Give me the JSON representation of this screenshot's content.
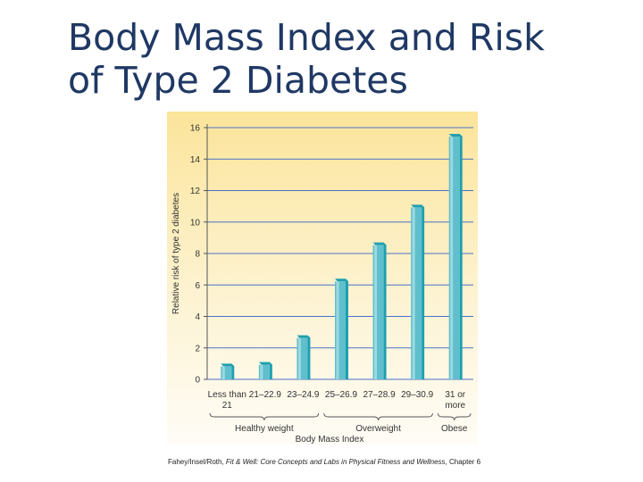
{
  "slide": {
    "title_line1": "Body Mass Index and Risk",
    "title_line2": "of Type 2 Diabetes",
    "citation": {
      "authors": "Fahey/Insel/Roth, ",
      "book": "Fit & Well: Core Concepts and Labs in Physical Fitness and Wellness",
      "chapter": ", Chapter 6"
    }
  },
  "colors": {
    "title": "#1f3864",
    "bar_front": "#5fbfcc",
    "bar_light": "#a7dde4",
    "bar_top": "#1f9fb0",
    "bg_top": "#fbe49a",
    "bg_bottom": "#fefcf6",
    "gridline": "#4a72c4"
  },
  "chart_data": {
    "type": "bar",
    "categories": [
      "Less than 21",
      "21–22.9",
      "23–24.9",
      "25–26.9",
      "27–28.9",
      "29–30.9",
      "31 or more"
    ],
    "values": [
      1.0,
      1.1,
      2.8,
      6.4,
      8.7,
      11.1,
      15.6
    ],
    "category_lines": [
      [
        "Less than",
        "21"
      ],
      [
        "21–22.9"
      ],
      [
        "23–24.9"
      ],
      [
        "25–26.9"
      ],
      [
        "27–28.9"
      ],
      [
        "29–30.9"
      ],
      [
        "31 or",
        "more"
      ]
    ],
    "groups": [
      {
        "label": "Healthy weight",
        "from": 0,
        "to": 2
      },
      {
        "label": "Overweight",
        "from": 3,
        "to": 5
      },
      {
        "label": "Obese",
        "from": 6,
        "to": 6
      }
    ],
    "title": "",
    "xlabel": "Body Mass Index",
    "ylabel": "Relative risk of type 2 diabetes",
    "ylim": [
      0,
      16
    ],
    "yticks": [
      0,
      2,
      4,
      6,
      8,
      10,
      12,
      14,
      16
    ],
    "grid": true
  }
}
